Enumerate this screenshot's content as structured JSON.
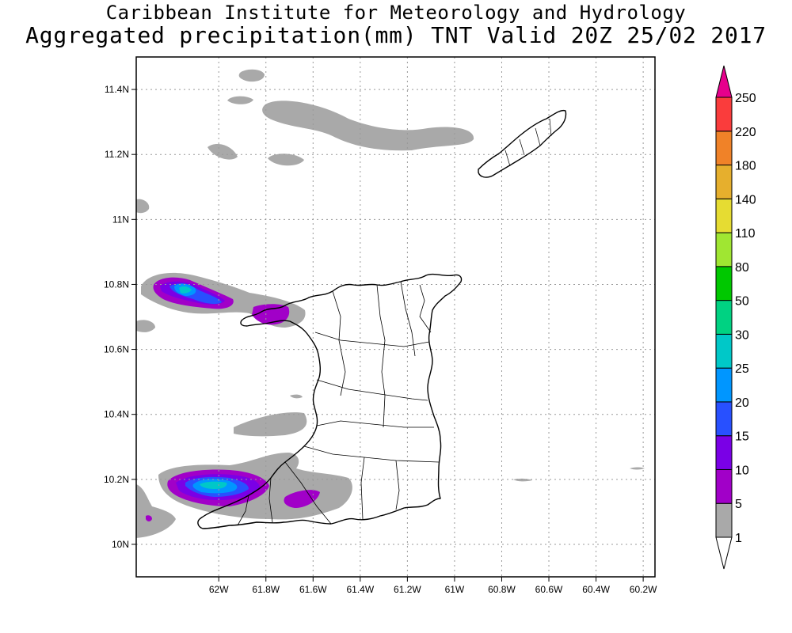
{
  "header": {
    "title": "Caribbean Institute for Meteorology and Hydrology",
    "subtitle": "Aggregated precipitation(mm) TNT Valid 20Z 25/02 2017"
  },
  "map": {
    "lon_range": [
      -62.35,
      -60.15
    ],
    "lat_range": [
      9.9,
      11.5
    ],
    "lon_ticks": [
      -62,
      -61.8,
      -61.6,
      -61.4,
      -61.2,
      -61,
      -60.8,
      -60.6,
      -60.4,
      -60.2
    ],
    "lon_tick_labels": [
      "62W",
      "61.8W",
      "61.6W",
      "61.4W",
      "61.2W",
      "61W",
      "60.8W",
      "60.6W",
      "60.4W",
      "60.2W"
    ],
    "lat_ticks": [
      10,
      10.2,
      10.4,
      10.6,
      10.8,
      11,
      11.2,
      11.4
    ],
    "lat_tick_labels": [
      "10N",
      "10.2N",
      "10.4N",
      "10.6N",
      "10.8N",
      "11N",
      "11.2N",
      "11.4N"
    ],
    "grid": true
  },
  "colorbar": {
    "levels": [
      "1",
      "5",
      "10",
      "15",
      "20",
      "25",
      "30",
      "50",
      "80",
      "110",
      "140",
      "180",
      "220",
      "250"
    ],
    "colors": [
      "#ffffff",
      "#a9a9a9",
      "#a100c8",
      "#7a00e6",
      "#2850ff",
      "#0096ff",
      "#00c8c8",
      "#00d282",
      "#00c800",
      "#a0e632",
      "#e6dc32",
      "#e6af2d",
      "#f08228",
      "#fa3c3c",
      "#e6008c"
    ]
  },
  "precip_colors": {
    "c1": "#a9a9a9",
    "c5": "#a100c8",
    "c10": "#7a00e6",
    "c15": "#2850ff",
    "c20": "#0096ff",
    "c25": "#00c8c8"
  }
}
